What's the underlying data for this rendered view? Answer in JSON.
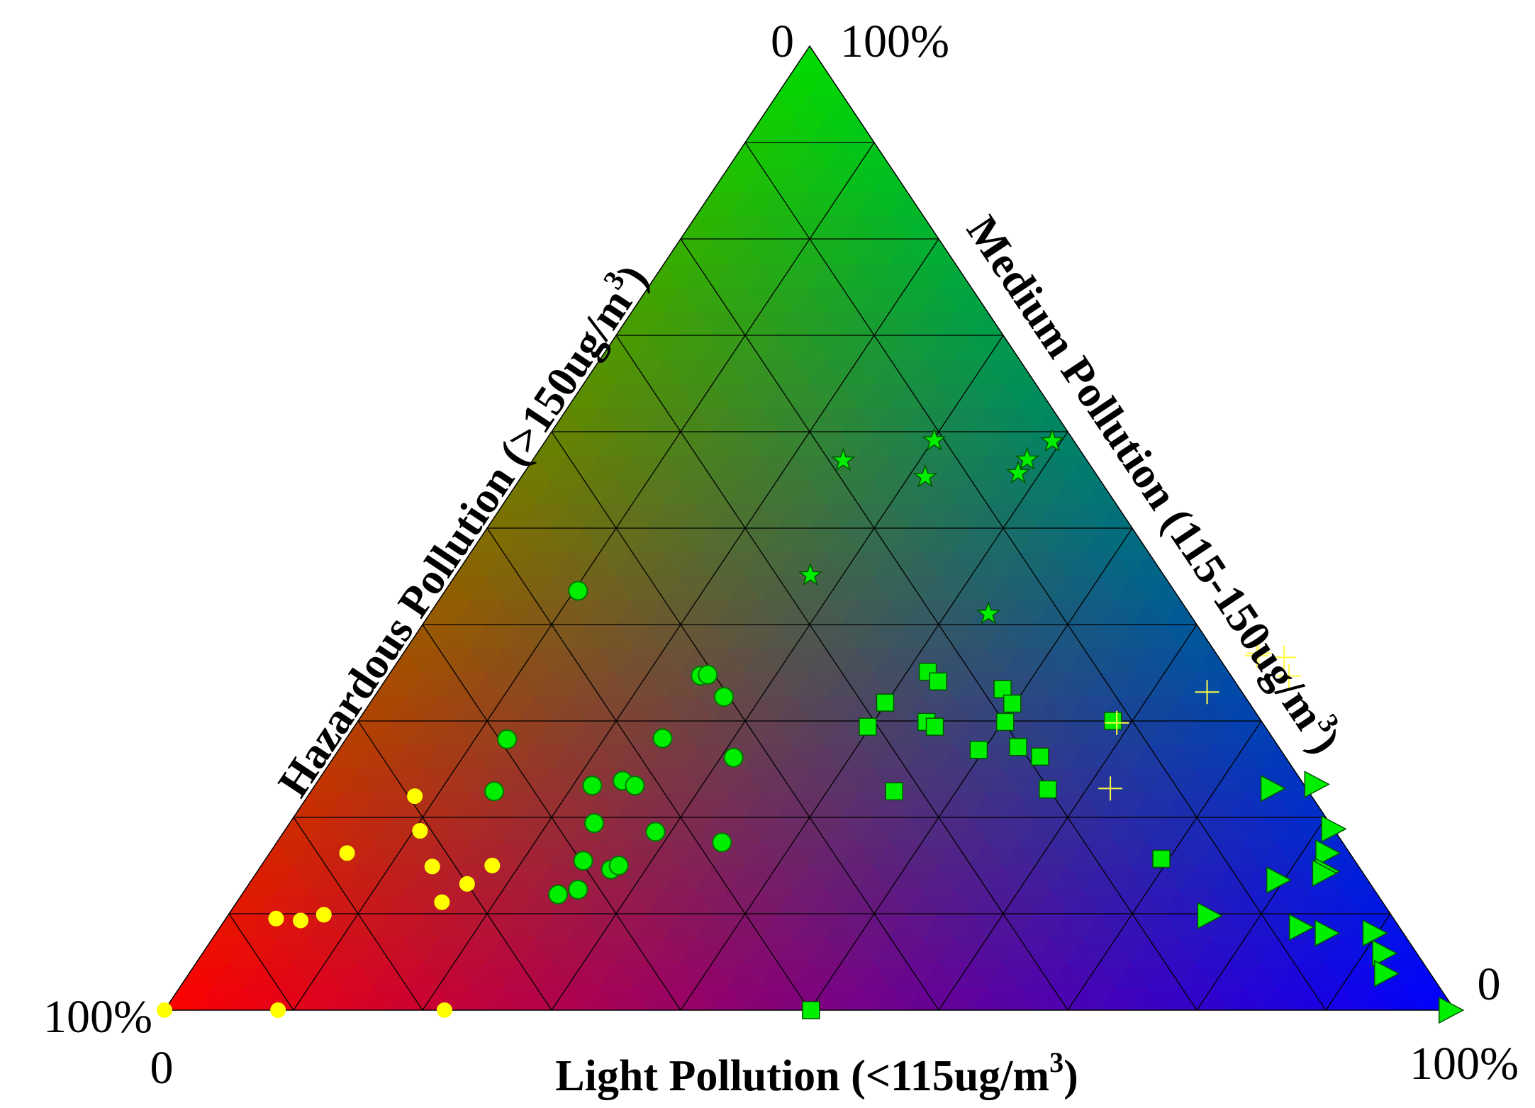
{
  "chart_data": {
    "type": "scatter",
    "subtype": "ternary",
    "grid": true,
    "grid_divisions": 10,
    "background": "rgb-gradient",
    "vertex_colors": {
      "hazardous": "#ff0000",
      "medium": "#00dd00",
      "light": "#0000ff"
    },
    "axes": {
      "bottom": {
        "title": "Light Pollution (<115ug/m",
        "title_sup": "3",
        "title_close": ")",
        "tick_start": "0",
        "tick_end": "100%"
      },
      "left": {
        "title": "Hazardous Pollution (>150ug/m",
        "title_sup": "3",
        "title_close": ")",
        "tick_start": "0",
        "tick_end": "100%"
      },
      "right": {
        "title": "Medium Pollution (115-150ug/m",
        "title_sup": "3",
        "title_close": ")",
        "tick_start": "0",
        "tick_end": "100%"
      }
    },
    "series": [
      {
        "marker": "circle",
        "color": "#ffff00",
        "stroke": "#ffff00",
        "points": [
          {
            "light": 0.0,
            "medium": 0.0,
            "hazardous": 1.0
          },
          {
            "light": 0.088,
            "medium": 0.0,
            "hazardous": 0.912
          },
          {
            "light": 0.217,
            "medium": 0.0,
            "hazardous": 0.783
          },
          {
            "light": 0.039,
            "medium": 0.095,
            "hazardous": 0.866
          },
          {
            "light": 0.059,
            "medium": 0.093,
            "hazardous": 0.848
          },
          {
            "light": 0.074,
            "medium": 0.099,
            "hazardous": 0.827
          },
          {
            "light": 0.06,
            "medium": 0.163,
            "hazardous": 0.777
          },
          {
            "light": 0.083,
            "medium": 0.222,
            "hazardous": 0.695
          },
          {
            "light": 0.105,
            "medium": 0.186,
            "hazardous": 0.709
          },
          {
            "light": 0.133,
            "medium": 0.149,
            "hazardous": 0.718
          },
          {
            "light": 0.159,
            "medium": 0.112,
            "hazardous": 0.729
          },
          {
            "light": 0.169,
            "medium": 0.131,
            "hazardous": 0.7
          },
          {
            "light": 0.179,
            "medium": 0.15,
            "hazardous": 0.671
          }
        ]
      },
      {
        "marker": "circle",
        "color": "#00ee00",
        "stroke": "#007700",
        "points": [
          {
            "light": 0.103,
            "medium": 0.435,
            "hazardous": 0.462
          },
          {
            "light": 0.125,
            "medium": 0.281,
            "hazardous": 0.594
          },
          {
            "light": 0.142,
            "medium": 0.227,
            "hazardous": 0.631
          },
          {
            "light": 0.245,
            "medium": 0.12,
            "hazardous": 0.635
          },
          {
            "light": 0.247,
            "medium": 0.155,
            "hazardous": 0.598
          },
          {
            "light": 0.258,
            "medium": 0.125,
            "hazardous": 0.617
          },
          {
            "light": 0.236,
            "medium": 0.194,
            "hazardous": 0.57
          },
          {
            "light": 0.215,
            "medium": 0.233,
            "hazardous": 0.552
          },
          {
            "light": 0.236,
            "medium": 0.238,
            "hazardous": 0.526
          },
          {
            "light": 0.245,
            "medium": 0.282,
            "hazardous": 0.473
          },
          {
            "light": 0.248,
            "medium": 0.233,
            "hazardous": 0.519
          },
          {
            "light": 0.273,
            "medium": 0.146,
            "hazardous": 0.581
          },
          {
            "light": 0.277,
            "medium": 0.15,
            "hazardous": 0.573
          },
          {
            "light": 0.288,
            "medium": 0.185,
            "hazardous": 0.527
          },
          {
            "light": 0.242,
            "medium": 0.347,
            "hazardous": 0.411
          },
          {
            "light": 0.247,
            "medium": 0.348,
            "hazardous": 0.405
          },
          {
            "light": 0.271,
            "medium": 0.325,
            "hazardous": 0.404
          },
          {
            "light": 0.31,
            "medium": 0.262,
            "hazardous": 0.428
          },
          {
            "light": 0.345,
            "medium": 0.174,
            "hazardous": 0.481
          }
        ]
      },
      {
        "marker": "star",
        "color": "#00ee00",
        "stroke": "#005500",
        "points": [
          {
            "light": 0.241,
            "medium": 0.57,
            "hazardous": 0.189
          },
          {
            "light": 0.275,
            "medium": 0.451,
            "hazardous": 0.274
          },
          {
            "light": 0.313,
            "medium": 0.553,
            "hazardous": 0.134
          },
          {
            "light": 0.301,
            "medium": 0.591,
            "hazardous": 0.108
          },
          {
            "light": 0.433,
            "medium": 0.411,
            "hazardous": 0.156
          },
          {
            "light": 0.383,
            "medium": 0.557,
            "hazardous": 0.06
          },
          {
            "light": 0.383,
            "medium": 0.571,
            "hazardous": 0.046
          },
          {
            "light": 0.393,
            "medium": 0.59,
            "hazardous": 0.017
          }
        ]
      },
      {
        "marker": "square",
        "color": "#00ee00",
        "stroke": "#005500",
        "points": [
          {
            "light": 0.416,
            "medium": 0.351,
            "hazardous": 0.233
          },
          {
            "light": 0.429,
            "medium": 0.341,
            "hazardous": 0.23
          },
          {
            "light": 0.399,
            "medium": 0.319,
            "hazardous": 0.282
          },
          {
            "light": 0.441,
            "medium": 0.299,
            "hazardous": 0.26
          },
          {
            "light": 0.398,
            "medium": 0.294,
            "hazardous": 0.308
          },
          {
            "light": 0.45,
            "medium": 0.294,
            "hazardous": 0.256
          },
          {
            "light": 0.483,
            "medium": 0.333,
            "hazardous": 0.184
          },
          {
            "light": 0.498,
            "medium": 0.318,
            "hazardous": 0.184
          },
          {
            "light": 0.502,
            "medium": 0.299,
            "hazardous": 0.199
          },
          {
            "light": 0.452,
            "medium": 0.227,
            "hazardous": 0.321
          },
          {
            "light": 0.496,
            "medium": 0.27,
            "hazardous": 0.234
          },
          {
            "light": 0.525,
            "medium": 0.273,
            "hazardous": 0.202
          },
          {
            "light": 0.547,
            "medium": 0.263,
            "hazardous": 0.19
          },
          {
            "light": 0.57,
            "medium": 0.229,
            "hazardous": 0.201
          },
          {
            "light": 0.585,
            "medium": 0.3,
            "hazardous": 0.115
          },
          {
            "light": 0.694,
            "medium": 0.157,
            "hazardous": 0.149
          },
          {
            "light": 0.501,
            "medium": 0.0,
            "hazardous": 0.499
          }
        ]
      },
      {
        "marker": "plus",
        "color": "#ffff44",
        "stroke": "#ffff44",
        "points": [
          {
            "light": 0.63,
            "medium": 0.454,
            "hazardous": 0.0
          },
          {
            "light": 0.627,
            "medium": 0.428,
            "hazardous": 0.0
          },
          {
            "light": 0.63,
            "medium": 0.42,
            "hazardous": 0.0
          },
          {
            "light": 0.65,
            "medium": 0.424,
            "hazardous": 0.0
          },
          {
            "light": 0.643,
            "medium": 0.33,
            "hazardous": 0.027
          },
          {
            "light": 0.589,
            "medium": 0.298,
            "hazardous": 0.113
          },
          {
            "light": 0.618,
            "medium": 0.23,
            "hazardous": 0.152
          }
        ]
      },
      {
        "marker": "triangle-right",
        "color": "#00ee00",
        "stroke": "#005500",
        "points": [
          {
            "light": 0.765,
            "medium": 0.25,
            "hazardous": 0.0
          },
          {
            "light": 0.743,
            "medium": 0.23,
            "hazardous": 0.027
          },
          {
            "light": 0.811,
            "medium": 0.188,
            "hazardous": 0.001
          },
          {
            "light": 0.819,
            "medium": 0.163,
            "hazardous": 0.018
          },
          {
            "light": 0.828,
            "medium": 0.144,
            "hazardous": 0.028
          },
          {
            "light": 0.795,
            "medium": 0.135,
            "hazardous": 0.07
          },
          {
            "light": 0.827,
            "medium": 0.142,
            "hazardous": 0.031
          },
          {
            "light": 0.76,
            "medium": 0.098,
            "hazardous": 0.142
          },
          {
            "light": 0.837,
            "medium": 0.086,
            "hazardous": 0.077
          },
          {
            "light": 0.86,
            "medium": 0.08,
            "hazardous": 0.06
          },
          {
            "light": 0.897,
            "medium": 0.08,
            "hazardous": 0.023
          },
          {
            "light": 0.915,
            "medium": 0.059,
            "hazardous": 0.026
          },
          {
            "light": 0.927,
            "medium": 0.038,
            "hazardous": 0.035
          },
          {
            "light": 0.996,
            "medium": 0.0,
            "hazardous": 0.004
          }
        ]
      }
    ]
  }
}
